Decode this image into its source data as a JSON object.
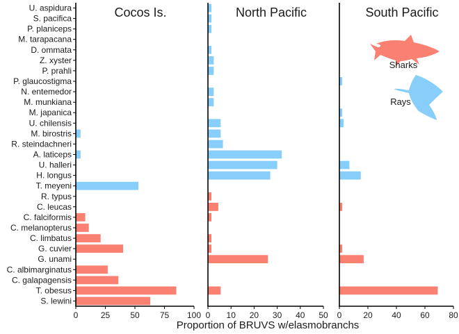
{
  "chart_data": {
    "type": "bar",
    "orientation": "horizontal",
    "xlabel": "Proportion of BRUVS w/elasmobranchs",
    "categories": [
      "U. aspidura",
      "S. pacifica",
      "P. planiceps",
      "M. tarapacana",
      "D. ommata",
      "Z. xyster",
      "P. prahli",
      "P. glaucostigma",
      "N. entemedor",
      "M. munkiana",
      "M. japanica",
      "U. chilensis",
      "M. birostris",
      "R. steindachneri",
      "A. laticeps",
      "U. halleri",
      "H. longus",
      "T. meyeni",
      "R. typus",
      "C. leucas",
      "C. falciformis",
      "C. melanopterus",
      "C. limbatus",
      "G. cuvier",
      "G. unami",
      "C. albimarginatus",
      "C. galapagensis",
      "T. obesus",
      "S. lewini"
    ],
    "group": [
      "ray",
      "ray",
      "ray",
      "ray",
      "ray",
      "ray",
      "ray",
      "ray",
      "ray",
      "ray",
      "ray",
      "ray",
      "ray",
      "ray",
      "ray",
      "ray",
      "ray",
      "ray",
      "shark",
      "shark",
      "shark",
      "shark",
      "shark",
      "shark",
      "shark",
      "shark",
      "shark",
      "shark",
      "shark"
    ],
    "colors": {
      "ray": "#87CEFA",
      "shark": "#FA8072"
    },
    "legend": [
      {
        "key": "shark",
        "label": "Sharks",
        "icon": "shark-silhouette"
      },
      {
        "key": "ray",
        "label": "Rays",
        "icon": "ray-silhouette"
      }
    ],
    "legend_position": "top-right",
    "panels": [
      {
        "title": "Cocos Is.",
        "xlim": [
          0,
          100
        ],
        "ticks": [
          0,
          25,
          50,
          75,
          100
        ],
        "values": [
          0,
          0,
          0,
          0,
          0,
          0,
          0,
          0,
          0,
          0,
          0,
          0,
          4,
          0,
          4,
          0,
          0,
          53,
          0,
          0,
          8,
          11,
          21,
          40,
          0,
          27,
          36,
          85,
          63
        ]
      },
      {
        "title": "North Pacific",
        "xlim": [
          0,
          50
        ],
        "ticks": [
          0,
          10,
          20,
          30,
          40,
          50
        ],
        "values": [
          1.5,
          1.5,
          1.5,
          0,
          1.5,
          2.5,
          2.5,
          0,
          2.5,
          2.5,
          0,
          5.5,
          5.5,
          6.5,
          32,
          30,
          27,
          0,
          1.5,
          4.5,
          1.5,
          0,
          1.5,
          1.5,
          26,
          0,
          0,
          5.5,
          0
        ]
      },
      {
        "title": "South Pacific",
        "xlim": [
          0,
          80
        ],
        "ticks": [
          0,
          20,
          40,
          60,
          80
        ],
        "values": [
          0,
          0,
          0,
          0,
          0,
          0,
          0,
          2,
          0,
          0,
          2,
          3,
          0,
          0,
          0,
          7,
          15,
          0,
          0,
          2,
          0,
          0,
          0,
          2,
          17,
          0,
          0,
          69,
          0
        ]
      }
    ]
  }
}
